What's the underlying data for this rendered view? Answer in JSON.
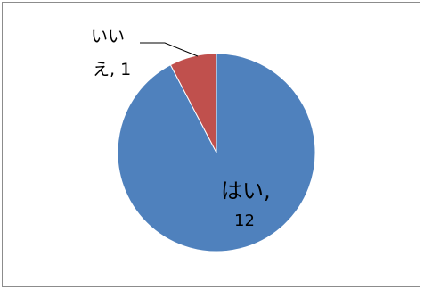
{
  "chart_data": {
    "type": "pie",
    "slices": [
      {
        "label": "はい",
        "value": 12,
        "color": "#4F81BD"
      },
      {
        "label": "いいえ",
        "value": 1,
        "color": "#C0504D"
      }
    ],
    "title": "",
    "legend": "none",
    "data_labels": {
      "yes": {
        "line1": "はい,",
        "line2": "12"
      },
      "no": {
        "line1": "いい",
        "line2": "え, 1"
      }
    }
  }
}
